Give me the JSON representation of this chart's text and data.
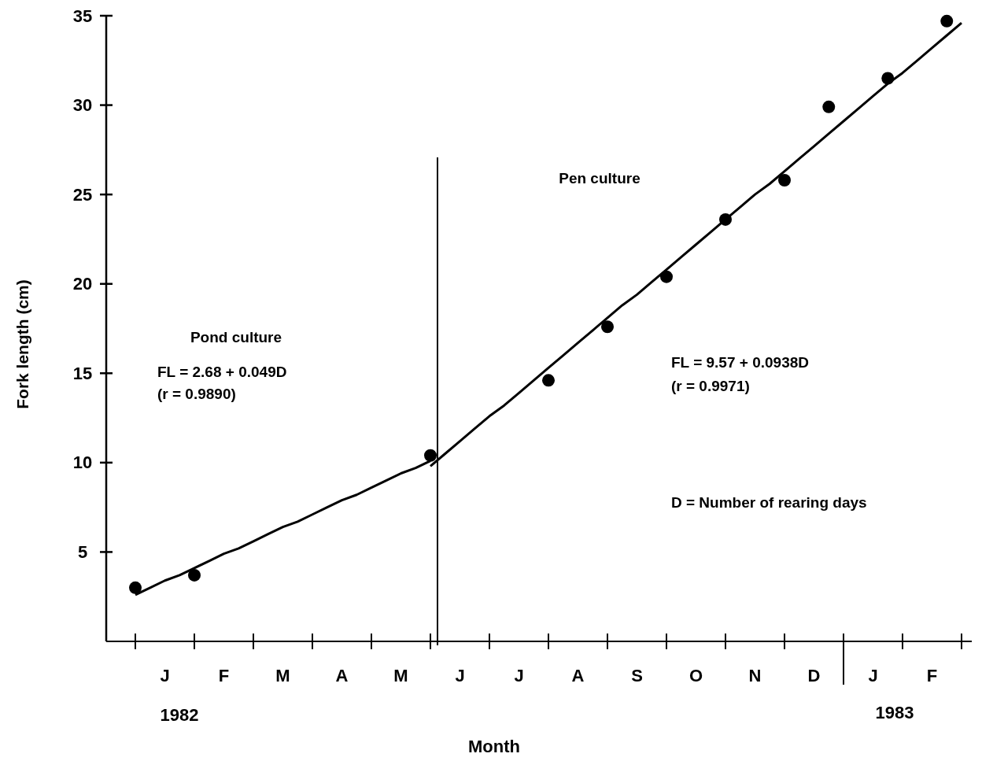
{
  "chart_data": {
    "type": "scatter",
    "xlabel": "Month",
    "ylabel": "Fork length (cm)",
    "categories": [
      null,
      null,
      "J",
      null,
      null,
      null,
      "F",
      null,
      null,
      null,
      "M",
      null,
      null,
      null,
      "A",
      null,
      null,
      null,
      "M",
      null,
      null,
      null,
      "J",
      null,
      null,
      null,
      "J",
      null,
      null,
      null,
      "A",
      null,
      null,
      null,
      "S",
      null,
      null,
      null,
      "O",
      null,
      null,
      null,
      "N",
      null,
      null,
      null,
      "D",
      null,
      null,
      null,
      "J",
      null,
      null,
      null,
      "F",
      null,
      null
    ],
    "ylim": [
      0,
      35
    ],
    "yticks": [
      5,
      10,
      15,
      20,
      25,
      30,
      35
    ],
    "series": [
      {
        "type": "scatter",
        "color": "#000000",
        "marker": "circle",
        "values": [
          3.0,
          null,
          null,
          null,
          3.7,
          null,
          null,
          null,
          null,
          null,
          null,
          null,
          null,
          null,
          null,
          null,
          null,
          null,
          null,
          null,
          10.4,
          null,
          null,
          null,
          null,
          null,
          null,
          null,
          14.6,
          null,
          null,
          null,
          17.6,
          null,
          null,
          null,
          20.4,
          null,
          null,
          null,
          23.6,
          null,
          null,
          null,
          25.8,
          null,
          null,
          29.9,
          null,
          null,
          null,
          31.5,
          null,
          null,
          null,
          34.7,
          null
        ]
      },
      {
        "type": "line",
        "color": "#000000",
        "values": [
          2.6,
          3.0,
          3.4,
          3.7,
          4.1,
          4.5,
          4.9,
          5.2,
          5.6,
          6.0,
          6.4,
          6.7,
          7.1,
          7.5,
          7.9,
          8.2,
          8.6,
          9.0,
          9.4,
          9.7,
          10.1,
          null,
          null,
          null,
          null,
          null,
          null,
          null,
          null,
          null,
          null,
          null,
          null,
          null,
          null,
          null,
          null,
          null,
          null,
          null,
          null,
          null,
          null,
          null,
          null,
          null,
          null,
          null,
          null,
          null,
          null,
          null,
          null,
          null,
          null,
          null,
          null
        ]
      },
      {
        "type": "line",
        "color": "#000000",
        "values": [
          null,
          null,
          null,
          null,
          null,
          null,
          null,
          null,
          null,
          null,
          null,
          null,
          null,
          null,
          null,
          null,
          null,
          null,
          null,
          null,
          9.8,
          10.5,
          11.2,
          11.9,
          12.6,
          13.2,
          13.9,
          14.6,
          15.3,
          16.0,
          16.7,
          17.4,
          18.1,
          18.8,
          19.4,
          20.1,
          20.8,
          21.5,
          22.2,
          22.9,
          23.6,
          24.3,
          25.0,
          25.6,
          26.3,
          27.0,
          27.7,
          28.4,
          29.1,
          29.8,
          30.5,
          31.2,
          31.8,
          32.5,
          33.2,
          33.9,
          34.6
        ]
      }
    ],
    "annotations": [
      "Pond culture",
      "FL = 2.68 + 0.049D",
      "(r = 0.9890)",
      "Pen culture",
      "FL = 9.57 + 0.0938D",
      "(r = 0.9971)",
      "D = Number of rearing days",
      "1982",
      "1983"
    ]
  }
}
